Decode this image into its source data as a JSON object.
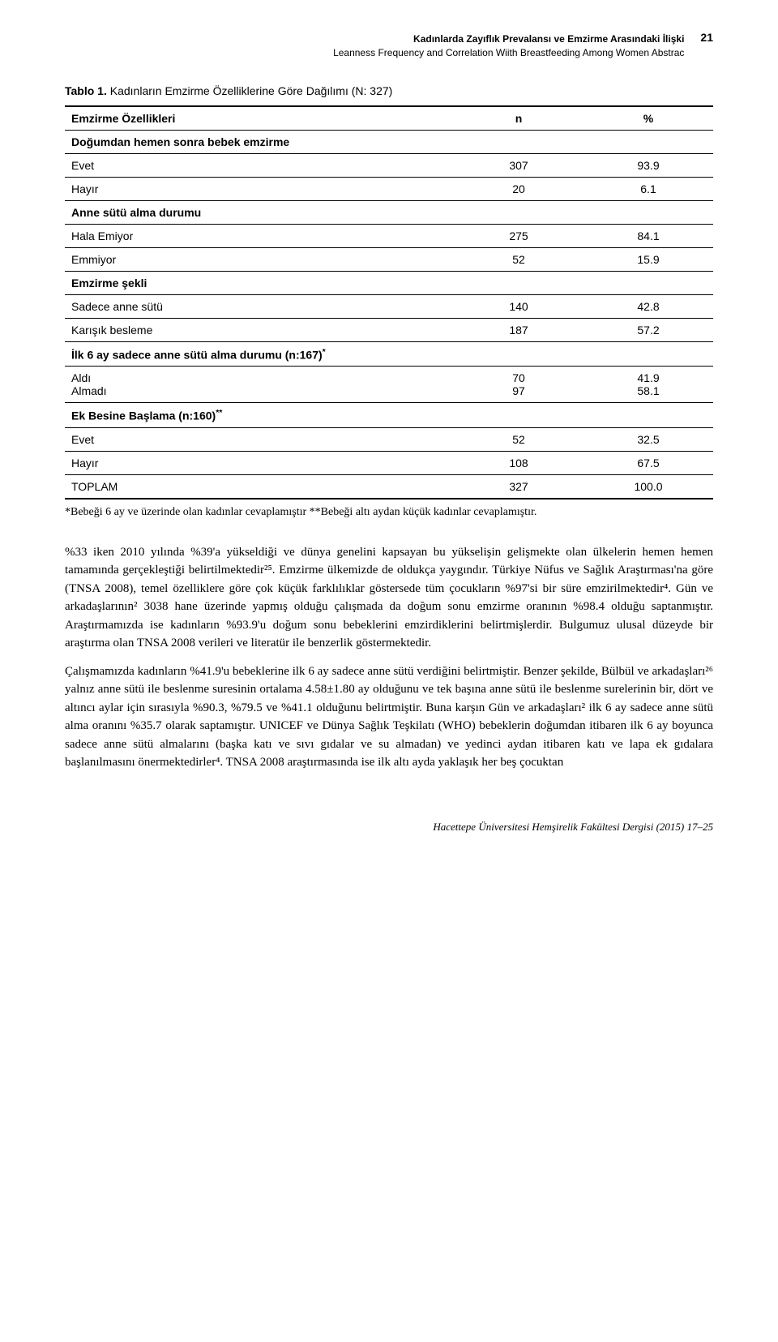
{
  "header": {
    "line1": "Kadınlarda Zayıflık Prevalansı ve Emzirme Arasındaki İlişki",
    "line2": "Leanness Frequency and Correlation Wiith Breastfeeding Among Women Abstrac",
    "page_number": "21"
  },
  "table_title": {
    "bold": "Tablo 1.",
    "rest": "Kadınların Emzirme Özelliklerine Göre Dağılımı (N: 327)"
  },
  "table": {
    "columns": {
      "c0": "Emzirme Özellikleri",
      "c1": "n",
      "c2": "%"
    },
    "sections": [
      {
        "header": "Doğumdan hemen sonra bebek emzirme",
        "rows": [
          {
            "label": "Evet",
            "n": "307",
            "pct": "93.9"
          },
          {
            "label": "Hayır",
            "n": "20",
            "pct": "6.1"
          }
        ]
      },
      {
        "header": "Anne sütü alma durumu",
        "rows": [
          {
            "label": "Hala Emiyor",
            "n": "275",
            "pct": "84.1"
          },
          {
            "label": "Emmiyor",
            "n": "52",
            "pct": "15.9"
          }
        ]
      },
      {
        "header": "Emzirme şekli",
        "rows": [
          {
            "label": "Sadece anne sütü",
            "n": "140",
            "pct": "42.8"
          },
          {
            "label": "Karışık besleme",
            "n": "187",
            "pct": "57.2"
          }
        ]
      },
      {
        "header": "İlk 6 ay sadece anne sütü alma durumu (n:167)*",
        "rows": [
          {
            "label": "Aldı",
            "n": "70",
            "pct": "41.9"
          },
          {
            "label": "Almadı",
            "n": "97",
            "pct": "58.1"
          }
        ],
        "combined": true
      },
      {
        "header": "Ek Besine Başlama (n:160)**",
        "rows": [
          {
            "label": "Evet",
            "n": "52",
            "pct": "32.5"
          },
          {
            "label": "Hayır",
            "n": "108",
            "pct": "67.5"
          }
        ]
      }
    ],
    "total": {
      "label": "TOPLAM",
      "n": "327",
      "pct": "100.0"
    }
  },
  "footnote": "*Bebeği 6 ay ve üzerinde olan kadınlar cevaplamıştır **Bebeği altı aydan küçük kadınlar cevaplamıştır.",
  "paragraphs": {
    "p1": "%33 iken 2010 yılında %39'a yükseldiği ve dünya genelini kapsayan bu yükselişin gelişmekte olan ülkelerin hemen hemen tamamında gerçekleştiği belirtilmektedir²⁵. Emzirme ülkemizde de oldukça yaygındır. Türkiye Nüfus ve Sağlık Araştırması'na göre (TNSA 2008), temel özelliklere göre çok küçük farklılıklar göstersede tüm çocukların %97'si bir süre emzirilmektedir⁴. Gün ve arkadaşlarının² 3038 hane üzerinde yapmış olduğu çalışmada da doğum sonu emzirme oranının %98.4 olduğu saptanmıştır. Araştırmamızda ise kadınların %93.9'u doğum sonu bebeklerini emzirdiklerini belirtmişlerdir. Bulgumuz ulusal düzeyde bir araştırma olan TNSA 2008 verileri ve literatür ile benzerlik göstermektedir.",
    "p2": "Çalışmamızda kadınların %41.9'u bebeklerine ilk 6 ay sadece anne sütü verdiğini belirtmiştir. Benzer şekilde, Bülbül ve arkadaşları²⁶ yalnız anne sütü ile beslenme suresinin ortalama 4.58±1.80 ay olduğunu ve tek başına anne sütü ile beslenme surelerinin bir, dört ve altıncı aylar için sırasıyla %90.3, %79.5 ve %41.1 olduğunu belirtmiştir. Buna karşın Gün ve arkadaşları² ilk 6 ay sadece anne sütü alma oranını %35.7 olarak saptamıştır. UNICEF ve Dünya Sağlık Teşkilatı (WHO) bebeklerin doğumdan itibaren ilk 6 ay boyunca sadece anne sütü almalarını (başka katı ve sıvı gıdalar ve su almadan) ve yedinci aydan itibaren katı ve lapa ek gıdalara başlanılmasını önermektedirler⁴. TNSA 2008 araştırmasında ise ilk altı ayda yaklaşık her beş çocuktan"
  },
  "footer": "Hacettepe Üniversitesi Hemşirelik Fakültesi Dergisi (2015) 17–25"
}
